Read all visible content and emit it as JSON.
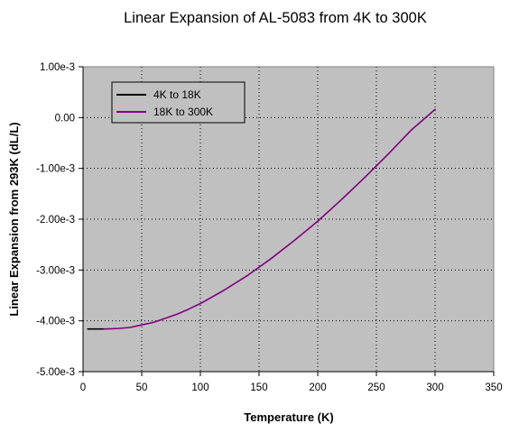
{
  "chart_data": {
    "type": "line",
    "title": "Linear Expansion of AL-5083 from 4K to 300K",
    "xlabel": "Temperature (K)",
    "ylabel": "Linear Expansion from 293K (dL/L)",
    "xlim": [
      0,
      350
    ],
    "ylim": [
      -0.005,
      0.001
    ],
    "x_ticks": [
      0,
      50,
      100,
      150,
      200,
      250,
      300,
      350
    ],
    "x_tick_labels": [
      "0",
      "50",
      "100",
      "150",
      "200",
      "250",
      "300",
      "350"
    ],
    "y_ticks": [
      0.001,
      0,
      -0.001,
      -0.002,
      -0.003,
      -0.004,
      -0.005
    ],
    "y_tick_labels": [
      "1.00e-3",
      "0.00",
      "-1.00e-3",
      "-2.00e-3",
      "-3.00e-3",
      "-4.00e-3",
      "-5.00e-3"
    ],
    "grid": true,
    "plot_background": "#c0c0c0",
    "legend_position": "top-left",
    "series": [
      {
        "name": "4K to 18K",
        "color": "#000000",
        "x": [
          4,
          8,
          12,
          18
        ],
        "y": [
          -0.00416,
          -0.00416,
          -0.00416,
          -0.00416
        ]
      },
      {
        "name": "18K to 300K",
        "color": "#800080",
        "x": [
          18,
          25,
          30,
          40,
          50,
          60,
          70,
          80,
          90,
          100,
          120,
          140,
          160,
          180,
          200,
          220,
          240,
          260,
          280,
          300
        ],
        "y": [
          -0.00416,
          -0.004155,
          -0.00415,
          -0.00413,
          -0.00408,
          -0.00403,
          -0.00395,
          -0.00387,
          -0.00377,
          -0.00366,
          -0.0034,
          -0.00311,
          -0.00278,
          -0.00242,
          -0.00204,
          -0.00162,
          -0.00118,
          -0.00072,
          -0.00024,
          0.00016
        ]
      }
    ]
  }
}
